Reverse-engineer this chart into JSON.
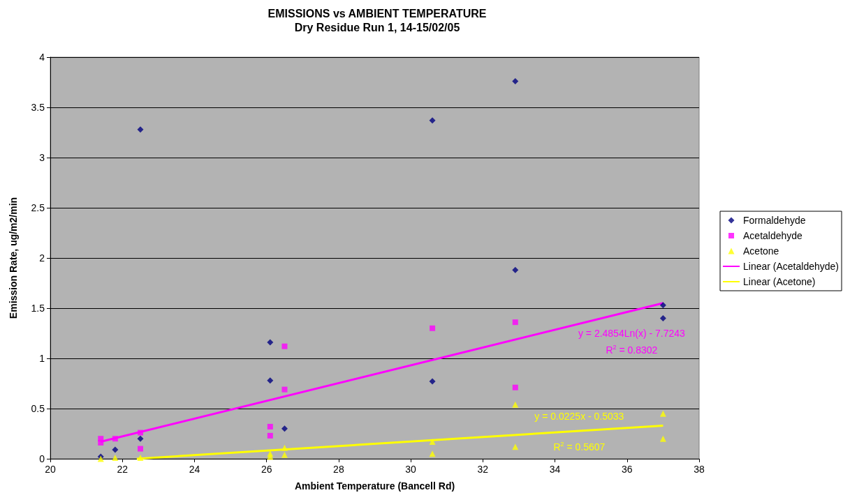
{
  "chart_data": {
    "type": "scatter",
    "title": "EMISSIONS vs AMBIENT TEMPERATURE",
    "subtitle": "Dry Residue Run 1, 14-15/02/05",
    "xlabel": "Ambient Temperature (Bancell Rd)",
    "ylabel": "Emission Rate, ug/m2/min",
    "xlim": [
      20,
      38
    ],
    "xticks": [
      20,
      22,
      24,
      26,
      28,
      30,
      32,
      34,
      36,
      38
    ],
    "ylim": [
      0,
      4
    ],
    "yticks": [
      0,
      0.5,
      1,
      1.5,
      2,
      2.5,
      3,
      3.5,
      4
    ],
    "grid": "y",
    "legend": "right",
    "series": [
      {
        "name": "Formaldehyde",
        "color": "#000080",
        "marker": "diamond",
        "x": [
          21.4,
          21.8,
          22.5,
          22.5,
          26.1,
          26.1,
          26.5,
          30.6,
          30.6,
          32.9,
          32.9,
          37,
          37
        ],
        "values": [
          0.02,
          0.09,
          3.28,
          0.2,
          1.16,
          0.78,
          0.3,
          3.37,
          0.77,
          3.76,
          1.88,
          1.53,
          1.4
        ]
      },
      {
        "name": "Acetaldehyde",
        "color": "#ff00ff",
        "marker": "square",
        "x": [
          21.4,
          21.4,
          21.8,
          22.5,
          22.5,
          26.1,
          26.1,
          26.5,
          26.5,
          30.6,
          32.9,
          32.9
        ],
        "values": [
          0.2,
          0.16,
          0.2,
          0.26,
          0.1,
          0.32,
          0.23,
          1.12,
          0.69,
          1.3,
          1.36,
          0.71
        ]
      },
      {
        "name": "Acetone",
        "color": "#ffff00",
        "marker": "triangle",
        "x": [
          21.4,
          21.8,
          22.5,
          26.1,
          26.1,
          26.5,
          26.5,
          30.6,
          30.6,
          32.9,
          32.9,
          37,
          37
        ],
        "values": [
          0,
          0.01,
          0.01,
          0.05,
          0.02,
          0.11,
          0.04,
          0.17,
          0.05,
          0.54,
          0.12,
          0.45,
          0.2
        ]
      },
      {
        "name": "Linear (Acetaldehyde)",
        "type": "line",
        "color": "#ff00ff",
        "marker": "none",
        "x": [
          21.4,
          37
        ],
        "values": [
          0.17,
          1.55
        ]
      },
      {
        "name": "Linear (Acetone)",
        "type": "line",
        "color": "#ffff00",
        "marker": "none",
        "x": [
          22.4,
          37
        ],
        "values": [
          0,
          0.33
        ]
      }
    ],
    "annotations": [
      "y = 2.4854Ln(x) - 7.7243",
      "R$^{2}$ = 0.8302",
      "y = 0.0225x - 0.5033",
      "R$^{2}$ = 0.5607"
    ]
  }
}
